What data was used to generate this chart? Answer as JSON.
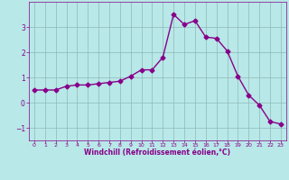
{
  "x": [
    0,
    1,
    2,
    3,
    4,
    5,
    6,
    7,
    8,
    9,
    10,
    11,
    12,
    13,
    14,
    15,
    16,
    17,
    18,
    19,
    20,
    21,
    22,
    23
  ],
  "y": [
    0.5,
    0.5,
    0.5,
    0.65,
    0.7,
    0.7,
    0.75,
    0.8,
    0.85,
    1.05,
    1.3,
    1.3,
    1.8,
    3.5,
    3.1,
    3.25,
    2.6,
    2.55,
    2.05,
    1.05,
    0.3,
    -0.1,
    -0.75,
    -0.85
  ],
  "line_color": "#880088",
  "marker": "D",
  "marker_size": 2.5,
  "bg_color": "#b8e8e8",
  "grid_color": "#90b8b8",
  "xlabel": "Windchill (Refroidissement éolien,°C)",
  "xlim": [
    -0.5,
    23.5
  ],
  "ylim": [
    -1.5,
    4.0
  ],
  "yticks": [
    -1,
    0,
    1,
    2,
    3
  ],
  "xticks": [
    0,
    1,
    2,
    3,
    4,
    5,
    6,
    7,
    8,
    9,
    10,
    11,
    12,
    13,
    14,
    15,
    16,
    17,
    18,
    19,
    20,
    21,
    22,
    23
  ],
  "label_color": "#880088",
  "tick_color": "#880088",
  "linewidth": 1.0
}
